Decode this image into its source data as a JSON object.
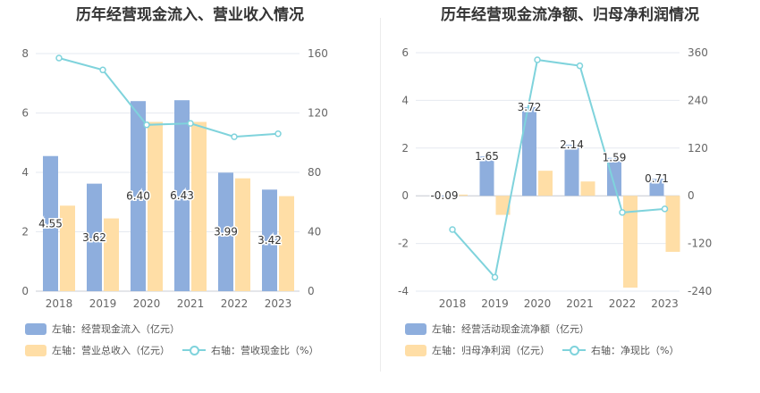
{
  "chart_data": [
    {
      "type": "bar",
      "title": "历年经营现金流入、营业收入情况",
      "categories": [
        "2018",
        "2019",
        "2020",
        "2021",
        "2022",
        "2023"
      ],
      "left_axis": {
        "ylim": [
          0,
          8
        ],
        "ticks": [
          "0",
          "2",
          "4",
          "6",
          "8"
        ]
      },
      "right_axis": {
        "ylim": [
          0,
          160
        ],
        "ticks": [
          "0",
          "40",
          "80",
          "120",
          "160"
        ]
      },
      "grid": true,
      "series": [
        {
          "name": "左轴：经营现金流入（亿元）",
          "type": "bar",
          "axis": "left",
          "color": "#8eaedd",
          "values": [
            4.55,
            3.62,
            6.4,
            6.43,
            3.99,
            3.42
          ],
          "labels": [
            "4.55",
            "3.62",
            "6.40",
            "6.43",
            "3.99",
            "3.42"
          ]
        },
        {
          "name": "左轴：营业总收入（亿元）",
          "type": "bar",
          "axis": "left",
          "color": "#ffdea6",
          "values": [
            2.88,
            2.45,
            5.7,
            5.7,
            3.8,
            3.2
          ]
        },
        {
          "name": "右轴：营收现金比（%）",
          "type": "line",
          "axis": "right",
          "color": "#7fd3dc",
          "values": [
            157,
            149,
            112,
            113,
            104,
            106
          ]
        }
      ],
      "legend": [
        [
          "左轴：经营现金流入（亿元）"
        ],
        [
          "左轴：营业总收入（亿元）",
          "右轴：营收现金比（%）"
        ]
      ],
      "legend_position": "bottom"
    },
    {
      "type": "bar",
      "title": "历年经营现金流净额、归母净利润情况",
      "categories": [
        "2018",
        "2019",
        "2020",
        "2021",
        "2022",
        "2023"
      ],
      "left_axis": {
        "ylim": [
          -4,
          6
        ],
        "ticks": [
          "-4",
          "-2",
          "0",
          "2",
          "4",
          "6"
        ]
      },
      "right_axis": {
        "ylim": [
          -240,
          360
        ],
        "ticks": [
          "-240",
          "-120",
          "0",
          "120",
          "240",
          "360"
        ]
      },
      "grid": true,
      "series": [
        {
          "name": "左轴：经营活动现金流净额（亿元）",
          "type": "bar",
          "axis": "left",
          "color": "#8eaedd",
          "values": [
            -0.09,
            1.65,
            3.72,
            2.14,
            1.59,
            0.71
          ],
          "labels": [
            "-0.09",
            "1.65",
            "3.72",
            "2.14",
            "1.59",
            "0.71"
          ]
        },
        {
          "name": "左轴：归母净利润（亿元）",
          "type": "bar",
          "axis": "left",
          "color": "#ffdea6",
          "values": [
            0.05,
            -0.8,
            1.05,
            0.6,
            -3.85,
            -2.35
          ]
        },
        {
          "name": "右轴：净现比（%）",
          "type": "line",
          "axis": "right",
          "color": "#7fd3dc",
          "values": [
            -85,
            -205,
            342,
            327,
            -42,
            -33
          ]
        }
      ],
      "legend": [
        [
          "左轴：经营活动现金流净额（亿元）"
        ],
        [
          "左轴：归母净利润（亿元）",
          "右轴：净现比（%）"
        ]
      ],
      "legend_position": "bottom"
    }
  ]
}
